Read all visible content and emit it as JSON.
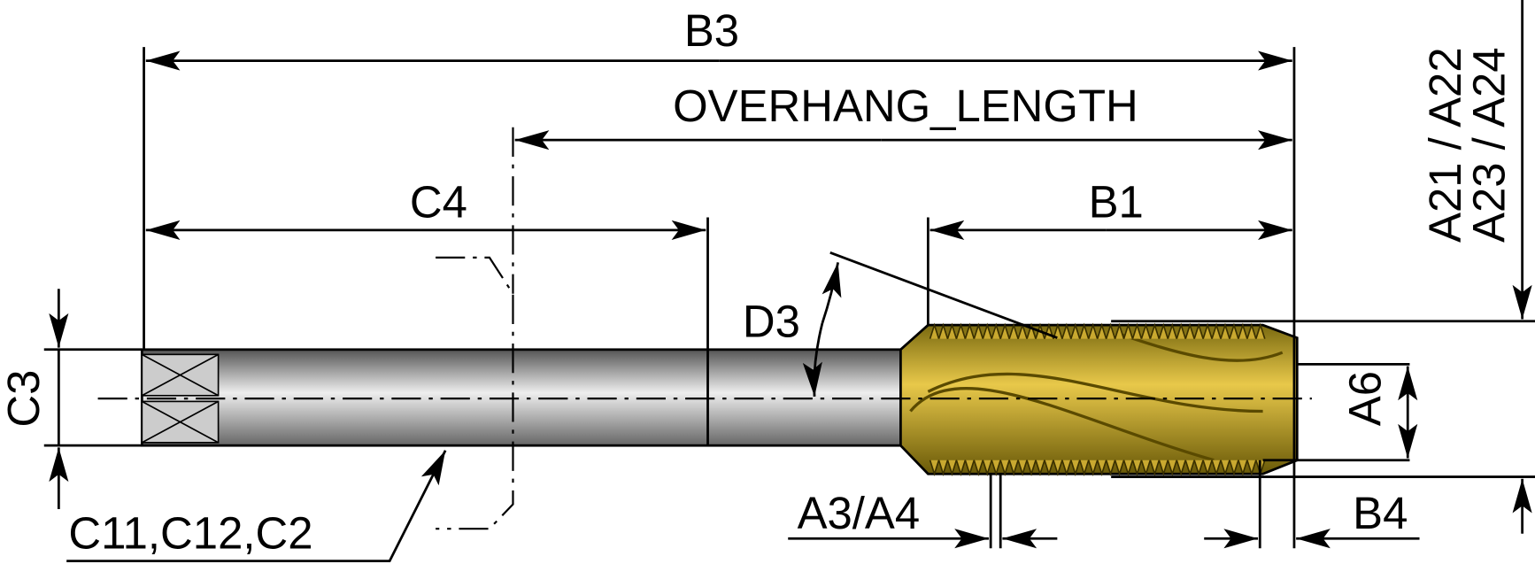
{
  "labels": {
    "b3": "B3",
    "overhang": "OVERHANG_LENGTH",
    "c4": "C4",
    "b1": "B1",
    "d3": "D3",
    "c3": "C3",
    "c11": "C11,C12,C2",
    "a3": "A3/A4",
    "b4": "B4",
    "a6": "A6",
    "a21": "A21 / A22",
    "a23": "A23 / A24"
  }
}
